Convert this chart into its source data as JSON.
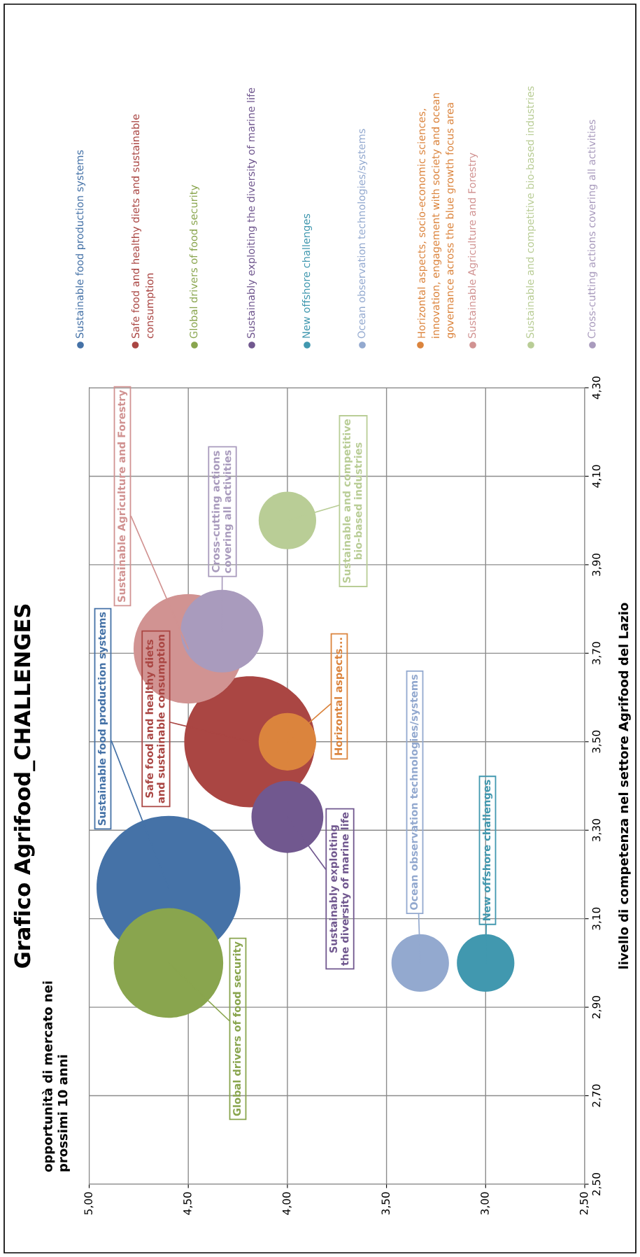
{
  "chart_data": {
    "type": "bubble",
    "title": "Grafico Agrifood_CHALLENGES",
    "ylabel": "livello di competenza nel settore Agrifood del Lazio",
    "ylim": [
      2.5,
      4.3
    ],
    "xlim": [
      5.0,
      2.5
    ],
    "yticks": [
      {
        "value": 2.5,
        "label": "2,50"
      },
      {
        "value": 2.7,
        "label": "2,70"
      },
      {
        "value": 2.9,
        "label": "2,90"
      },
      {
        "value": 3.1,
        "label": "3,10"
      },
      {
        "value": 3.3,
        "label": "3,30"
      },
      {
        "value": 3.5,
        "label": "3,50"
      },
      {
        "value": 3.7,
        "label": "3,70"
      },
      {
        "value": 3.9,
        "label": "3,90"
      },
      {
        "value": 4.1,
        "label": "4,10"
      },
      {
        "value": 4.3,
        "label": "4,30"
      }
    ],
    "xticks": [
      {
        "value": 5.0,
        "label": "5,00"
      },
      {
        "value": 4.5,
        "label": "4,50"
      },
      {
        "value": 4.0,
        "label": "4,00"
      },
      {
        "value": 3.5,
        "label": "3,50"
      },
      {
        "value": 3.0,
        "label": "3,00"
      },
      {
        "value": 2.5,
        "label": "2,50"
      }
    ],
    "grid": true,
    "legend": "top",
    "series": [
      {
        "name": "Sustainable food production systems",
        "color": "#4572a7",
        "x": [
          4.6
        ],
        "values": [
          3.17
        ],
        "sizes": [
          1.0
        ]
      },
      {
        "name": "Safe food and healthy diets and sustainable\nconsumption",
        "color": "#aa4643",
        "x": [
          4.19
        ],
        "values": [
          3.5
        ],
        "sizes": [
          0.83
        ]
      },
      {
        "name": "Global drivers of food security",
        "color": "#89a54e",
        "x": [
          4.6
        ],
        "values": [
          3.0
        ],
        "sizes": [
          0.58
        ]
      },
      {
        "name": "Sustainably exploiting the diversity of marine life",
        "color": "#71588f",
        "x": [
          4.0
        ],
        "values": [
          3.33
        ],
        "sizes": [
          0.25
        ]
      },
      {
        "name": "New offshore challenges",
        "color": "#4198af",
        "x": [
          3.0
        ],
        "values": [
          3.0
        ],
        "sizes": [
          0.16
        ]
      },
      {
        "name": "Ocean observation technologies/systems",
        "color": "#93a9cf",
        "x": [
          3.33
        ],
        "values": [
          3.0
        ],
        "sizes": [
          0.16
        ]
      },
      {
        "name": "Horizontal aspects, socio-economic sciences,\ninnovation, engagement with society and ocean\ngovernance across the blue growth focus area",
        "color": "#db843d",
        "x": [
          4.0
        ],
        "values": [
          3.5
        ],
        "sizes": [
          0.16
        ]
      },
      {
        "name": "Sustainable Agriculture and Forestry",
        "color": "#d19392",
        "x": [
          4.5
        ],
        "values": [
          3.71
        ],
        "sizes": [
          0.58
        ]
      },
      {
        "name": "Sustainable and competitive bio-based industries",
        "color": "#b9cd96",
        "x": [
          4.0
        ],
        "values": [
          4.0
        ],
        "sizes": [
          0.16
        ]
      },
      {
        "name": "Cross-cutting actions covering all activities",
        "color": "#a99bbd",
        "x": [
          4.33
        ],
        "values": [
          3.75
        ],
        "sizes": [
          0.33
        ]
      }
    ],
    "annotations": [
      {
        "text": "Sustainable food production systems",
        "x": 4.6,
        "y": 3.17
      },
      {
        "text": "Safe food and healthy diets\nand sustainable consumption",
        "x": 4.19,
        "y": 3.5
      },
      {
        "text": "Global drivers of food security",
        "x": 4.6,
        "y": 3.0
      },
      {
        "text": "Sustainably exploiting\nthe diversity of marine life",
        "x": 4.0,
        "y": 3.33
      },
      {
        "text": "New offshore challenges",
        "x": 3.0,
        "y": 3.0
      },
      {
        "text": "Ocean observation technologies/systems",
        "x": 3.33,
        "y": 3.0
      },
      {
        "text": "Horizontal aspects...",
        "x": 4.0,
        "y": 3.5
      },
      {
        "text": "Sustainable Agriculture and Forestry",
        "x": 4.5,
        "y": 3.71
      },
      {
        "text": "Sustainable and competitive\nbio-based industries",
        "x": 4.0,
        "y": 4.0
      },
      {
        "text": "Cross-cutting actions\ncovering all activities",
        "x": 4.33,
        "y": 3.75
      },
      "opportunità di mercato nei\nprossimi 10 anni"
    ]
  }
}
